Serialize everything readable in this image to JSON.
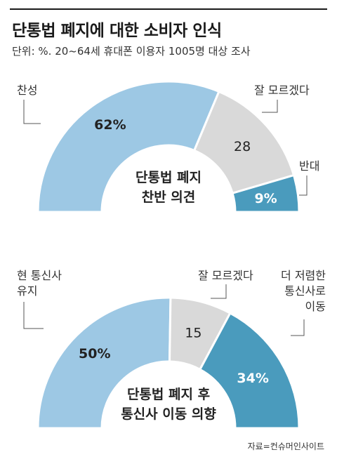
{
  "header": {
    "title": "단통법 폐지에 대한 소비자 인식",
    "subtitle": "단위: %. 20~64세 휴대폰 이용자 1005명 대상 조사"
  },
  "colors": {
    "light_blue": "#9dc8e4",
    "gray": "#d9d9d9",
    "dark_blue": "#4a9bbd",
    "leader": "#555555"
  },
  "source": "자료=컨슈머인사이트",
  "chart_data": [
    {
      "type": "pie",
      "subtype": "semi-donut",
      "center_label": [
        "단통법 폐지",
        "찬반 의견"
      ],
      "categories": [
        "찬성",
        "잘 모르겠다",
        "반대"
      ],
      "values": [
        62,
        28,
        9
      ],
      "value_labels": [
        "62%",
        "28",
        "9%"
      ],
      "colors": [
        "#9dc8e4",
        "#d9d9d9",
        "#4a9bbd"
      ]
    },
    {
      "type": "pie",
      "subtype": "semi-donut",
      "center_label": [
        "단통법 폐지 후",
        "통신사 이동 의향"
      ],
      "categories": [
        "현 통신사\n유지",
        "잘 모르겠다",
        "더 저렴한\n통신사로\n이동"
      ],
      "values": [
        50,
        15,
        34
      ],
      "value_labels": [
        "50%",
        "15",
        "34%"
      ],
      "colors": [
        "#9dc8e4",
        "#d9d9d9",
        "#4a9bbd"
      ]
    }
  ]
}
